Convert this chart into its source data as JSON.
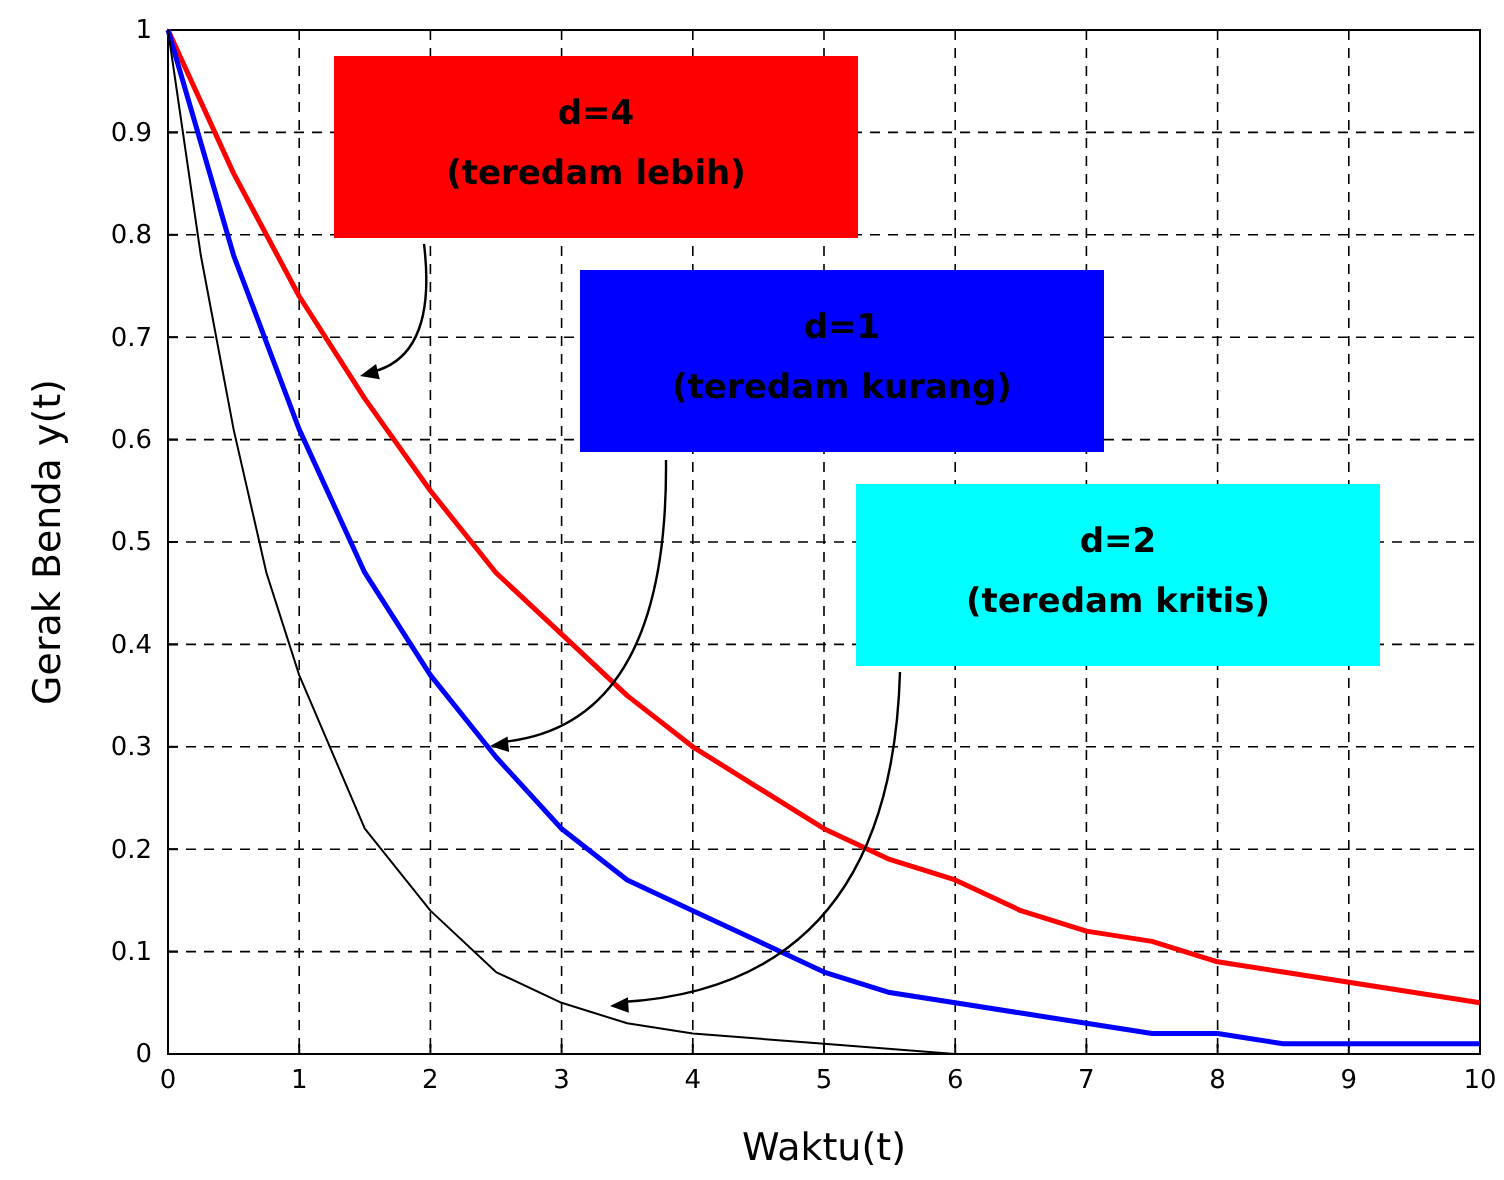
{
  "chart_data": {
    "type": "line",
    "xlabel": "Waktu(t)",
    "ylabel": "Gerak Benda y(t)",
    "x": [
      0,
      0.5,
      1,
      1.5,
      2,
      2.5,
      3,
      3.5,
      4,
      4.5,
      5,
      5.5,
      6,
      6.5,
      7,
      7.5,
      8,
      8.5,
      9,
      9.5,
      10
    ],
    "series": [
      {
        "color": "#ff0000",
        "values": [
          1,
          0.86,
          0.74,
          0.64,
          0.55,
          0.47,
          0.41,
          0.35,
          0.3,
          0.26,
          0.22,
          0.19,
          0.17,
          0.14,
          0.12,
          0.11,
          0.09,
          0.08,
          0.07,
          0.06,
          0.05
        ]
      },
      {
        "color": "#0000ff",
        "values": [
          1,
          0.78,
          0.61,
          0.47,
          0.37,
          0.29,
          0.22,
          0.17,
          0.14,
          0.11,
          0.08,
          0.06,
          0.05,
          0.04,
          0.03,
          0.02,
          0.02,
          0.01,
          0.01,
          0.01,
          0.01
        ]
      },
      {
        "color": "#000000",
        "x": [
          0,
          0.25,
          0.5,
          0.75,
          1,
          1.5,
          2,
          2.5,
          3,
          3.5,
          4,
          5,
          6,
          7,
          8,
          9,
          10
        ],
        "values": [
          1,
          0.78,
          0.61,
          0.47,
          0.37,
          0.22,
          0.14,
          0.08,
          0.05,
          0.03,
          0.02,
          0.01,
          0,
          0,
          0,
          0,
          0
        ]
      }
    ],
    "xlim": [
      0,
      10
    ],
    "xticks": [
      0,
      1,
      2,
      3,
      4,
      5,
      6,
      7,
      8,
      9,
      10
    ],
    "ylim": [
      0,
      1
    ],
    "yticks": [
      0,
      0.1,
      0.2,
      0.3,
      0.4,
      0.5,
      0.6,
      0.7,
      0.8,
      0.9,
      1
    ],
    "grid": true,
    "line_style": "solid",
    "marker": "none",
    "annotations": [
      "d=4\n(teredam lebih)",
      "d=1\n(teredam kurang)",
      "d=2\n(teredam kritis)"
    ]
  }
}
